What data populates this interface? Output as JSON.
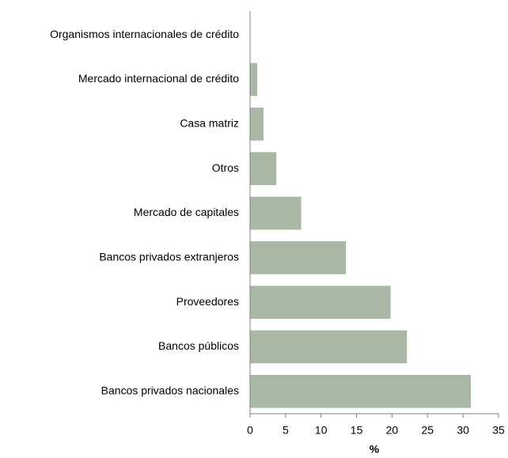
{
  "chart_data": {
    "type": "barh",
    "categories": [
      "Organismos internacionales de crédito",
      "Mercado internacional de crédito",
      "Casa matriz",
      "Otros",
      "Mercado de capitales",
      "Bancos privados extranjeros",
      "Proveedores",
      "Bancos públicos",
      "Bancos privados nacionales"
    ],
    "values": [
      0,
      1.0,
      1.9,
      3.7,
      7.2,
      13.5,
      19.8,
      22.1,
      31.1
    ],
    "color": "#a9b8a4",
    "xlabel": "%",
    "xlim": [
      0,
      35
    ],
    "xticks": [
      0,
      5,
      10,
      15,
      20,
      25,
      30,
      35
    ]
  }
}
